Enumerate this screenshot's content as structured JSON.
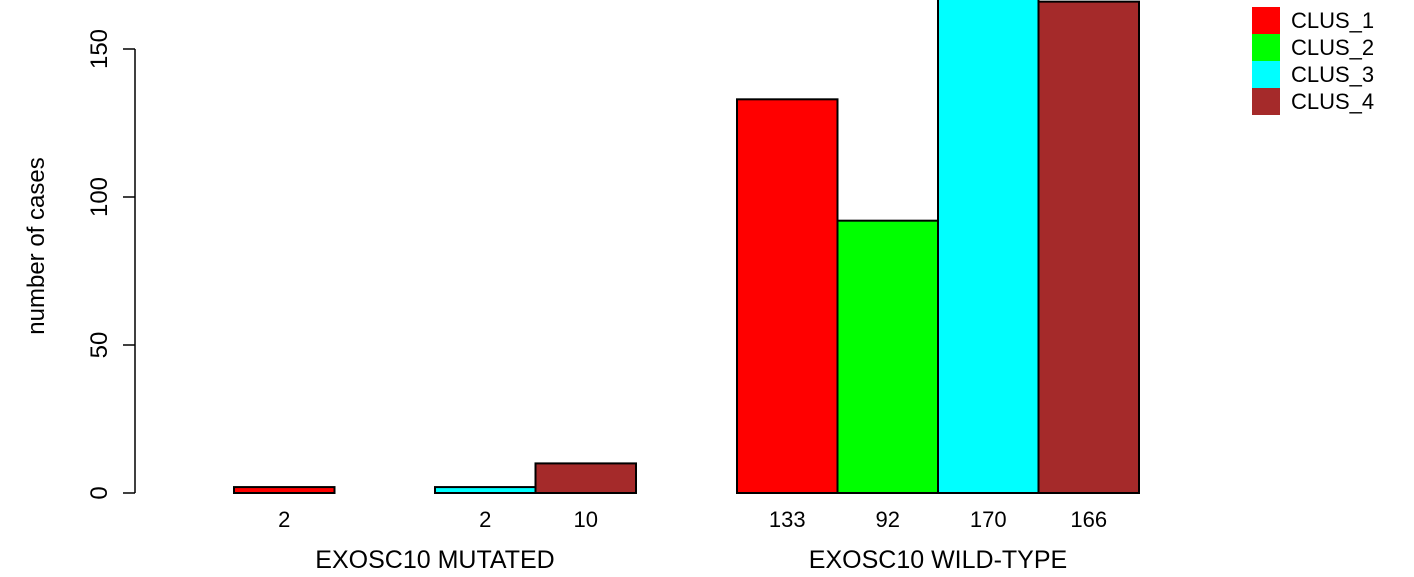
{
  "chart_data": {
    "type": "bar",
    "title": "",
    "ylabel": "number of cases",
    "ylim": [
      0,
      170
    ],
    "yticks": [
      0,
      50,
      100,
      150
    ],
    "grid": false,
    "legend_position": "top-right",
    "groups": [
      {
        "label": "EXOSC10 MUTATED",
        "values": [
          2,
          0,
          2,
          10
        ],
        "value_labels": [
          "2",
          "",
          "2",
          "10"
        ]
      },
      {
        "label": "EXOSC10 WILD-TYPE",
        "values": [
          133,
          92,
          170,
          166
        ],
        "value_labels": [
          "133",
          "92",
          "170",
          "166"
        ]
      }
    ],
    "series": [
      {
        "name": "CLUS_1",
        "color": "#ff0000"
      },
      {
        "name": "CLUS_2",
        "color": "#00ff00"
      },
      {
        "name": "CLUS_3",
        "color": "#00ffff"
      },
      {
        "name": "CLUS_4",
        "color": "#a52a2a"
      }
    ]
  }
}
